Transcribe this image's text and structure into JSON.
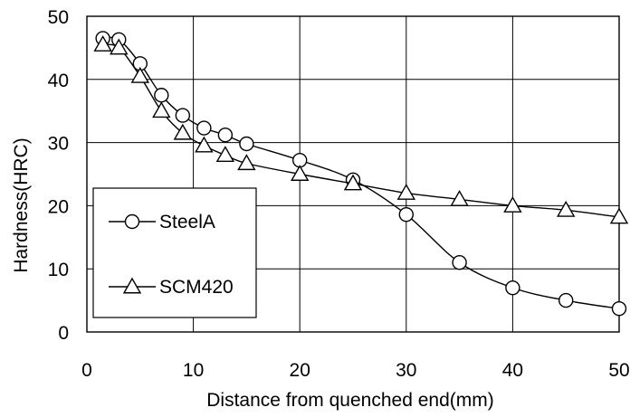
{
  "chart_data": {
    "type": "line",
    "title": "",
    "xlabel": "Distance from quenched end(mm)",
    "ylabel": "Hardness(HRC)",
    "xlim": [
      0,
      50
    ],
    "ylim": [
      0,
      50
    ],
    "x_ticks": [
      0,
      10,
      20,
      30,
      40,
      50
    ],
    "y_ticks": [
      0,
      10,
      20,
      30,
      40,
      50
    ],
    "grid": true,
    "legend_position": "left",
    "series": [
      {
        "name": "SteelA",
        "marker": "circle",
        "color": "#000000",
        "x": [
          1.5,
          3,
          5,
          7,
          9,
          11,
          13,
          15,
          20,
          25,
          30,
          35,
          40,
          45,
          50
        ],
        "y": [
          46.5,
          46.3,
          42.5,
          37.5,
          34.3,
          32.3,
          31.2,
          29.8,
          27.2,
          24.1,
          18.6,
          11,
          7,
          5,
          3.7
        ]
      },
      {
        "name": "SCM420",
        "marker": "triangle",
        "color": "#000000",
        "x": [
          1.5,
          3,
          5,
          7,
          9,
          11,
          13,
          15,
          20,
          25,
          30,
          35,
          40,
          45,
          50
        ],
        "y": [
          45.5,
          45,
          40.5,
          35,
          31.5,
          29.5,
          28,
          26.7,
          25,
          23.5,
          22,
          21,
          20,
          19.3,
          18.2
        ]
      }
    ]
  }
}
